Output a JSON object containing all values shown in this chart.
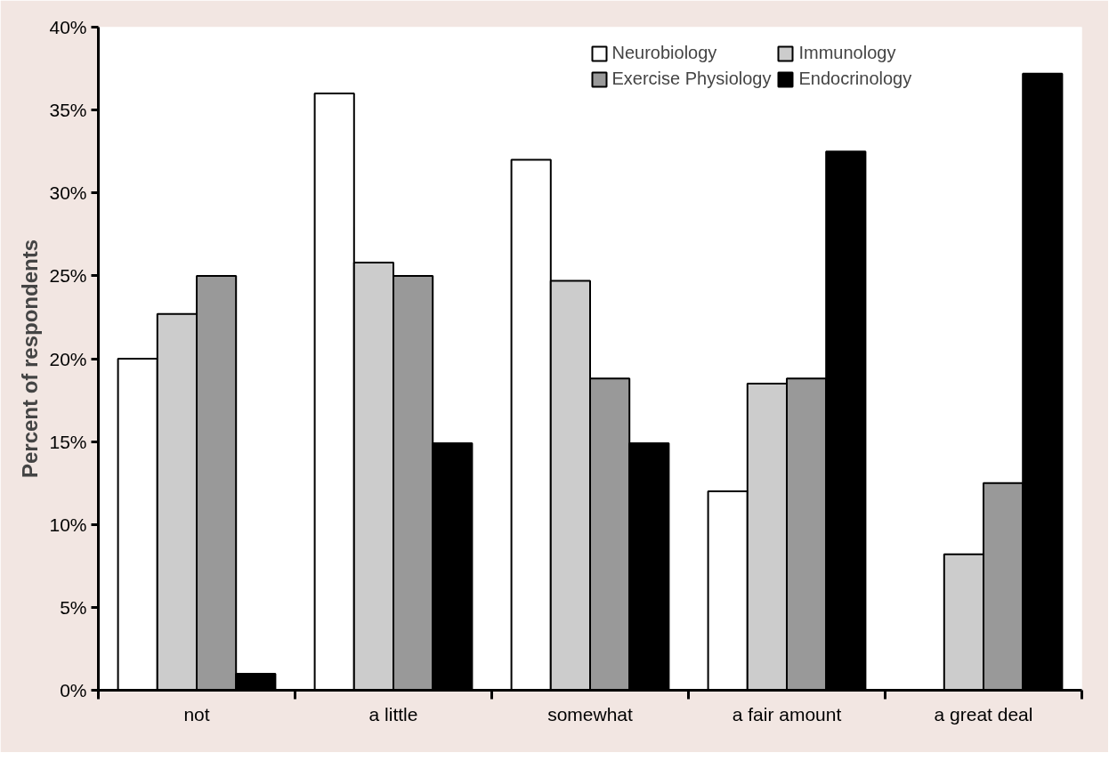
{
  "chart_data": {
    "type": "bar",
    "ylabel": "Percent of respondents",
    "categories": [
      "not",
      "a little",
      "somewhat",
      "a fair amount",
      "a great deal"
    ],
    "series": [
      {
        "name": "Neurobiology",
        "color": "#ffffff",
        "values": [
          20,
          36,
          32,
          12,
          null
        ]
      },
      {
        "name": "Immunology",
        "color": "#cccccc",
        "values": [
          22.7,
          25.8,
          24.7,
          18.5,
          8.2
        ]
      },
      {
        "name": "Exercise Physiology",
        "color": "#999999",
        "values": [
          25,
          25,
          18.8,
          18.8,
          12.5
        ]
      },
      {
        "name": "Endocrinology",
        "color": "#000000",
        "values": [
          1,
          14.9,
          14.9,
          32.5,
          37.2
        ]
      }
    ],
    "ylim": [
      0,
      40
    ],
    "yticks": [
      {
        "value": 0,
        "label": "0%"
      },
      {
        "value": 5,
        "label": "5%"
      },
      {
        "value": 10,
        "label": "10%"
      },
      {
        "value": 15,
        "label": "15%"
      },
      {
        "value": 20,
        "label": "20%"
      },
      {
        "value": 25,
        "label": "25%"
      },
      {
        "value": 30,
        "label": "30%"
      },
      {
        "value": 35,
        "label": "35%"
      },
      {
        "value": 40,
        "label": "40%"
      }
    ],
    "grid": false,
    "legend": "top right"
  }
}
